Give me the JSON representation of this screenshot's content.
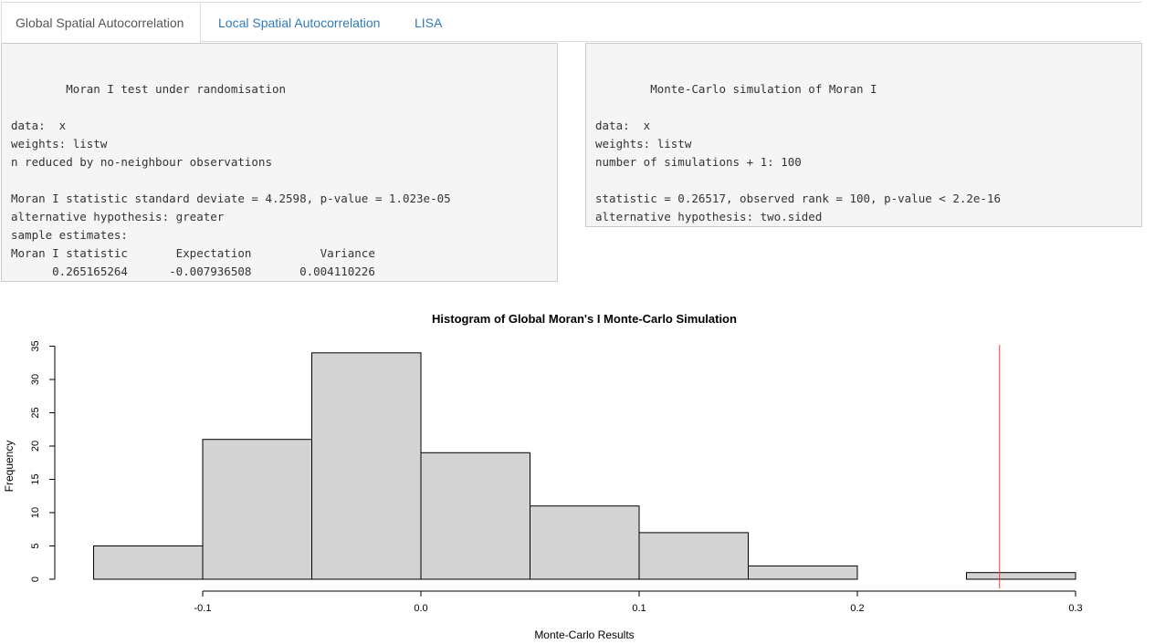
{
  "tabs": [
    {
      "label": "Global Spatial Autocorrelation",
      "active": true
    },
    {
      "label": "Local Spatial Autocorrelation",
      "active": false
    },
    {
      "label": "LISA",
      "active": false
    }
  ],
  "moran_test_output": [
    "",
    "",
    "\tMoran I test under randomisation",
    "",
    "data:  x",
    "weights: listw",
    "n reduced by no-neighbour observations",
    "",
    "Moran I statistic standard deviate = 4.2598, p-value = 1.023e-05",
    "alternative hypothesis: greater",
    "sample estimates:",
    "Moran I statistic       Expectation          Variance",
    "      0.265165264      -0.007936508       0.004110226"
  ],
  "monte_carlo_output": [
    "",
    "",
    "\tMonte-Carlo simulation of Moran I",
    "",
    "data:  x",
    "weights: listw",
    "number of simulations + 1: 100",
    "",
    "statistic = 0.26517, observed rank = 100, p-value < 2.2e-16",
    "alternative hypothesis: two.sided"
  ],
  "chart_data": {
    "type": "bar",
    "title": "Histogram of Global Moran's I Monte-Carlo Simulation",
    "xlabel": "Monte-Carlo Results",
    "ylabel": "Frequency",
    "bins": [
      {
        "from": -0.15,
        "to": -0.1,
        "count": 5
      },
      {
        "from": -0.1,
        "to": -0.05,
        "count": 21
      },
      {
        "from": -0.05,
        "to": 0.0,
        "count": 34
      },
      {
        "from": 0.0,
        "to": 0.05,
        "count": 19
      },
      {
        "from": 0.05,
        "to": 0.1,
        "count": 11
      },
      {
        "from": 0.1,
        "to": 0.15,
        "count": 7
      },
      {
        "from": 0.15,
        "to": 0.2,
        "count": 2
      },
      {
        "from": 0.2,
        "to": 0.25,
        "count": 0
      },
      {
        "from": 0.25,
        "to": 0.3,
        "count": 1
      }
    ],
    "xticks": [
      -0.1,
      0.0,
      0.1,
      0.2,
      0.3
    ],
    "xtick_labels": [
      "-0.1",
      "0.0",
      "0.1",
      "0.2",
      "0.3"
    ],
    "yticks": [
      0,
      5,
      10,
      15,
      20,
      25,
      30,
      35
    ],
    "ylim": [
      0,
      35
    ],
    "observed_line": {
      "x": 0.26517,
      "color": "#e8403a"
    },
    "bar_fill": "#d3d3d3",
    "bar_stroke": "#000000",
    "grid": false
  }
}
